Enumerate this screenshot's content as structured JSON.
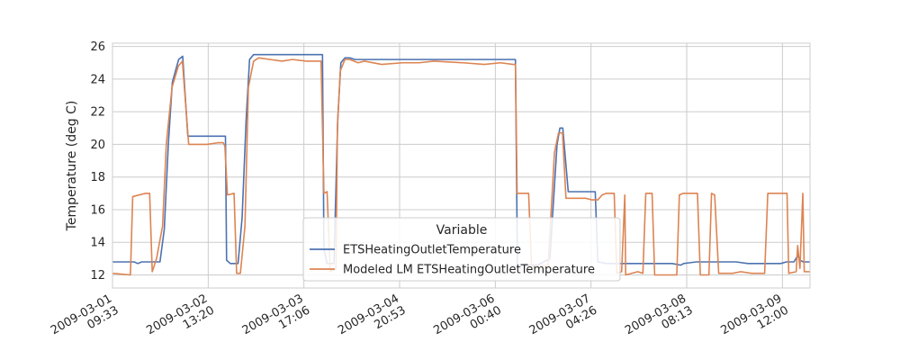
{
  "chart_data": {
    "type": "line",
    "title": "",
    "xlabel": "",
    "ylabel": "Temperature (deg C)",
    "xlim": [
      "2009-03-01 09:33",
      "2009-03-09 20:00"
    ],
    "ylim": [
      11.2,
      26.2
    ],
    "yticks": [
      12,
      14,
      16,
      18,
      20,
      22,
      24,
      26
    ],
    "xticks": [
      "2009-03-01 09:33",
      "2009-03-02 13:20",
      "2009-03-03 17:06",
      "2009-03-04 20:53",
      "2009-03-06 00:40",
      "2009-03-07 04:26",
      "2009-03-08 08:13",
      "2009-03-09 12:00"
    ],
    "xtick_labels": [
      [
        "2009-03-01",
        "09:33"
      ],
      [
        "2009-03-02",
        "13:20"
      ],
      [
        "2009-03-03",
        "17:06"
      ],
      [
        "2009-03-04",
        "20:53"
      ],
      [
        "2009-03-06",
        "00:40"
      ],
      [
        "2009-03-07",
        "04:26"
      ],
      [
        "2009-03-08",
        "08:13"
      ],
      [
        "2009-03-09",
        "12:00"
      ]
    ],
    "grid": true,
    "legend": {
      "title": "Variable",
      "placement": "lower center"
    },
    "series": [
      {
        "name": "ETSHeatingOutletTemperature",
        "color": "#4c72b0",
        "points": [
          [
            "2009-03-01 09:33",
            12.8
          ],
          [
            "2009-03-01 15:50",
            12.8
          ],
          [
            "2009-03-01 16:55",
            12.7
          ],
          [
            "2009-03-01 18:00",
            12.8
          ],
          [
            "2009-03-01 21:50",
            12.8
          ],
          [
            "2009-03-01 23:20",
            12.8
          ],
          [
            "2009-03-02 00:35",
            14.8
          ],
          [
            "2009-03-02 01:45",
            20.0
          ],
          [
            "2009-03-02 02:55",
            23.8
          ],
          [
            "2009-03-02 04:45",
            25.2
          ],
          [
            "2009-03-02 05:55",
            25.4
          ],
          [
            "2009-03-02 07:25",
            20.5
          ],
          [
            "2009-03-02 11:40",
            20.5
          ],
          [
            "2009-03-02 16:00",
            20.5
          ],
          [
            "2009-03-02 18:20",
            20.5
          ],
          [
            "2009-03-02 18:40",
            12.9
          ],
          [
            "2009-03-02 19:45",
            12.7
          ],
          [
            "2009-03-02 22:00",
            12.7
          ],
          [
            "2009-03-02 23:10",
            15.5
          ],
          [
            "2009-03-03 00:20",
            21.5
          ],
          [
            "2009-03-03 01:20",
            25.2
          ],
          [
            "2009-03-03 02:30",
            25.5
          ],
          [
            "2009-03-03 03:40",
            25.5
          ],
          [
            "2009-03-03 07:00",
            25.5
          ],
          [
            "2009-03-03 14:00",
            25.5
          ],
          [
            "2009-03-03 20:30",
            25.5
          ],
          [
            "2009-03-03 22:30",
            25.5
          ],
          [
            "2009-03-03 22:55",
            13.6
          ],
          [
            "2009-03-03 23:50",
            12.7
          ],
          [
            "2009-03-04 01:50",
            12.7
          ],
          [
            "2009-03-04 02:55",
            21.5
          ],
          [
            "2009-03-04 03:50",
            25.0
          ],
          [
            "2009-03-04 05:00",
            25.3
          ],
          [
            "2009-03-04 06:25",
            25.3
          ],
          [
            "2009-03-04 07:55",
            25.2
          ],
          [
            "2009-03-05 00:00",
            25.2
          ],
          [
            "2009-03-05 20:00",
            25.2
          ],
          [
            "2009-03-06 06:30",
            25.2
          ],
          [
            "2009-03-06 07:05",
            12.6
          ],
          [
            "2009-03-06 12:50",
            12.6
          ],
          [
            "2009-03-06 16:30",
            13.0
          ],
          [
            "2009-03-06 18:35",
            20.0
          ],
          [
            "2009-03-06 19:25",
            21.0
          ],
          [
            "2009-03-06 20:15",
            21.0
          ],
          [
            "2009-03-06 21:50",
            17.1
          ],
          [
            "2009-03-07 00:00",
            17.1
          ],
          [
            "2009-03-07 05:40",
            17.1
          ],
          [
            "2009-03-07 06:25",
            12.8
          ],
          [
            "2009-03-07 09:00",
            12.7
          ],
          [
            "2009-03-07 16:00",
            12.7
          ],
          [
            "2009-03-08 04:00",
            12.7
          ],
          [
            "2009-03-08 06:30",
            12.6
          ],
          [
            "2009-03-08 07:20",
            12.7
          ],
          [
            "2009-03-08 11:00",
            12.8
          ],
          [
            "2009-03-08 16:00",
            12.8
          ],
          [
            "2009-03-08 22:30",
            12.8
          ],
          [
            "2009-03-09 02:00",
            12.7
          ],
          [
            "2009-03-09 08:00",
            12.7
          ],
          [
            "2009-03-09 11:30",
            12.7
          ],
          [
            "2009-03-09 13:10",
            12.8
          ],
          [
            "2009-03-09 15:20",
            12.8
          ],
          [
            "2009-03-09 16:30",
            13.2
          ],
          [
            "2009-03-09 17:05",
            12.9
          ],
          [
            "2009-03-09 18:05",
            12.8
          ],
          [
            "2009-03-09 20:00",
            12.8
          ]
        ]
      },
      {
        "name": "Modeled LM ETSHeatingOutletTemperature",
        "color": "#dd8452",
        "points": [
          [
            "2009-03-01 09:33",
            12.1
          ],
          [
            "2009-03-01 14:45",
            12.0
          ],
          [
            "2009-03-01 15:25",
            16.8
          ],
          [
            "2009-03-01 19:10",
            17.0
          ],
          [
            "2009-03-01 20:20",
            17.0
          ],
          [
            "2009-03-01 21:05",
            12.2
          ],
          [
            "2009-03-01 22:20",
            13.0
          ],
          [
            "2009-03-02 00:05",
            15.0
          ],
          [
            "2009-03-02 01:10",
            20.0
          ],
          [
            "2009-03-02 02:50",
            23.5
          ],
          [
            "2009-03-02 04:40",
            24.8
          ],
          [
            "2009-03-02 05:50",
            25.1
          ],
          [
            "2009-03-02 07:40",
            20.0
          ],
          [
            "2009-03-02 10:00",
            20.0
          ],
          [
            "2009-03-02 13:00",
            20.0
          ],
          [
            "2009-03-02 16:10",
            20.1
          ],
          [
            "2009-03-02 17:40",
            20.1
          ],
          [
            "2009-03-02 18:10",
            19.9
          ],
          [
            "2009-03-02 18:55",
            16.9
          ],
          [
            "2009-03-02 20:50",
            17.0
          ],
          [
            "2009-03-02 21:35",
            12.1
          ],
          [
            "2009-03-02 22:40",
            12.1
          ],
          [
            "2009-03-03 00:00",
            15.0
          ],
          [
            "2009-03-03 01:00",
            23.5
          ],
          [
            "2009-03-03 02:30",
            25.1
          ],
          [
            "2009-03-03 04:00",
            25.3
          ],
          [
            "2009-03-03 07:20",
            25.2
          ],
          [
            "2009-03-03 10:45",
            25.1
          ],
          [
            "2009-03-03 13:45",
            25.2
          ],
          [
            "2009-03-03 17:50",
            25.1
          ],
          [
            "2009-03-03 22:05",
            25.1
          ],
          [
            "2009-03-03 22:55",
            17.0
          ],
          [
            "2009-03-03 23:50",
            17.1
          ],
          [
            "2009-03-04 00:45",
            12.2
          ],
          [
            "2009-03-04 02:25",
            12.4
          ],
          [
            "2009-03-04 02:50",
            21.0
          ],
          [
            "2009-03-04 03:40",
            24.5
          ],
          [
            "2009-03-04 05:00",
            25.2
          ],
          [
            "2009-03-04 06:25",
            25.2
          ],
          [
            "2009-03-04 08:50",
            25.0
          ],
          [
            "2009-03-04 10:40",
            25.1
          ],
          [
            "2009-03-04 15:40",
            24.9
          ],
          [
            "2009-03-04 21:45",
            25.0
          ],
          [
            "2009-03-05 02:30",
            25.0
          ],
          [
            "2009-03-05 06:50",
            25.1
          ],
          [
            "2009-03-05 15:20",
            25.0
          ],
          [
            "2009-03-05 21:30",
            24.9
          ],
          [
            "2009-03-06 02:10",
            25.0
          ],
          [
            "2009-03-06 05:50",
            24.9
          ],
          [
            "2009-03-06 06:30",
            24.9
          ],
          [
            "2009-03-06 07:00",
            17.0
          ],
          [
            "2009-03-06 10:20",
            17.0
          ],
          [
            "2009-03-06 11:10",
            12.5
          ],
          [
            "2009-03-06 16:00",
            12.6
          ],
          [
            "2009-03-06 17:50",
            19.5
          ],
          [
            "2009-03-06 19:00",
            20.7
          ],
          [
            "2009-03-06 20:10",
            20.7
          ],
          [
            "2009-03-06 21:10",
            16.7
          ],
          [
            "2009-03-07 02:50",
            16.7
          ],
          [
            "2009-03-07 04:40",
            16.6
          ],
          [
            "2009-03-07 06:25",
            16.6
          ],
          [
            "2009-03-07 07:40",
            16.9
          ],
          [
            "2009-03-07 08:50",
            17.0
          ],
          [
            "2009-03-07 11:10",
            17.0
          ],
          [
            "2009-03-07 11:55",
            12.1
          ],
          [
            "2009-03-07 13:20",
            12.2
          ],
          [
            "2009-03-07 14:15",
            16.9
          ],
          [
            "2009-03-07 14:30",
            12.0
          ],
          [
            "2009-03-07 18:00",
            12.2
          ],
          [
            "2009-03-07 19:30",
            12.1
          ],
          [
            "2009-03-07 20:20",
            17.0
          ],
          [
            "2009-03-07 22:10",
            17.0
          ],
          [
            "2009-03-07 22:55",
            12.0
          ],
          [
            "2009-03-08 03:40",
            12.0
          ],
          [
            "2009-03-08 05:20",
            12.0
          ],
          [
            "2009-03-08 06:05",
            16.9
          ],
          [
            "2009-03-08 07:10",
            17.0
          ],
          [
            "2009-03-08 11:20",
            17.0
          ],
          [
            "2009-03-08 12:10",
            12.0
          ],
          [
            "2009-03-08 14:40",
            12.0
          ],
          [
            "2009-03-08 15:25",
            17.0
          ],
          [
            "2009-03-08 16:20",
            16.9
          ],
          [
            "2009-03-08 17:30",
            12.1
          ],
          [
            "2009-03-08 21:30",
            12.1
          ],
          [
            "2009-03-08 23:55",
            12.2
          ],
          [
            "2009-03-09 03:00",
            12.1
          ],
          [
            "2009-03-09 06:50",
            12.1
          ],
          [
            "2009-03-09 07:45",
            17.0
          ],
          [
            "2009-03-09 09:10",
            17.0
          ],
          [
            "2009-03-09 13:20",
            17.0
          ],
          [
            "2009-03-09 13:50",
            12.1
          ],
          [
            "2009-03-09 16:00",
            12.2
          ],
          [
            "2009-03-09 16:25",
            13.8
          ],
          [
            "2009-03-09 17:05",
            12.4
          ],
          [
            "2009-03-09 17:55",
            17.0
          ],
          [
            "2009-03-09 18:20",
            12.2
          ],
          [
            "2009-03-09 19:00",
            12.2
          ],
          [
            "2009-03-09 20:00",
            12.2
          ]
        ]
      }
    ]
  }
}
